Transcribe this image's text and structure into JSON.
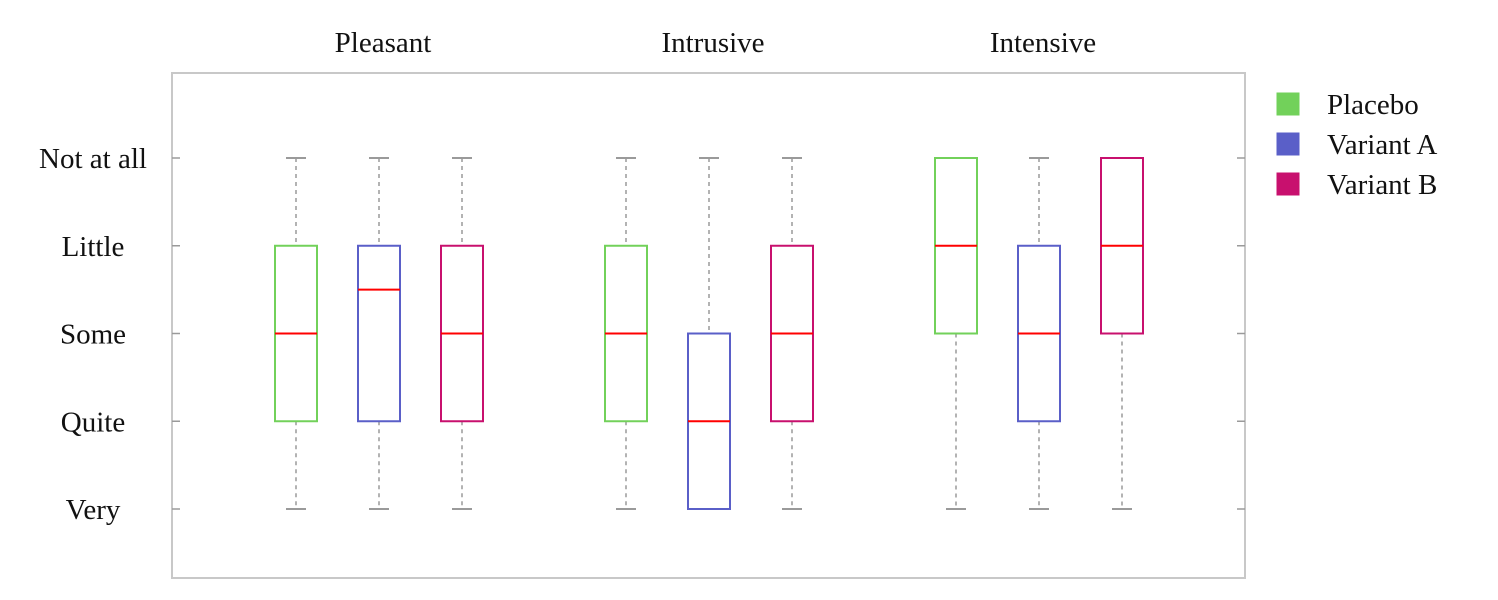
{
  "chart_data": {
    "type": "box",
    "groups": [
      "Pleasant",
      "Intrusive",
      "Intensive"
    ],
    "y_tick_labels": [
      "Very",
      "Quite",
      "Some",
      "Little",
      "Not at all"
    ],
    "y_tick_values": [
      1,
      2,
      3,
      4,
      5
    ],
    "ylim": [
      0.4,
      6
    ],
    "grid": false,
    "legend_position": "right",
    "series": [
      {
        "name": "Placebo",
        "color": "#72d15a",
        "boxes": [
          {
            "min": 1,
            "q1": 2,
            "median": 3,
            "q3": 4,
            "max": 5
          },
          {
            "min": 1,
            "q1": 2,
            "median": 3,
            "q3": 4,
            "max": 5
          },
          {
            "min": 1,
            "q1": 3,
            "median": 4,
            "q3": 5,
            "max": 5
          }
        ]
      },
      {
        "name": "Variant A",
        "color": "#5a5fc8",
        "boxes": [
          {
            "min": 1,
            "q1": 2,
            "median": 3.5,
            "q3": 4,
            "max": 5
          },
          {
            "min": 1,
            "q1": 1,
            "median": 2,
            "q3": 3,
            "max": 5
          },
          {
            "min": 1,
            "q1": 2,
            "median": 3,
            "q3": 4,
            "max": 5
          }
        ]
      },
      {
        "name": "Variant B",
        "color": "#c8106e",
        "boxes": [
          {
            "min": 1,
            "q1": 2,
            "median": 3,
            "q3": 4,
            "max": 5
          },
          {
            "min": 1,
            "q1": 2,
            "median": 3,
            "q3": 4,
            "max": 5
          },
          {
            "min": 1,
            "q1": 3,
            "median": 4,
            "q3": 5,
            "max": 5
          }
        ]
      }
    ],
    "median_color": "#ff0000",
    "whisker_color": "#9a9a9a",
    "frame_color": "#c8c8c8"
  }
}
